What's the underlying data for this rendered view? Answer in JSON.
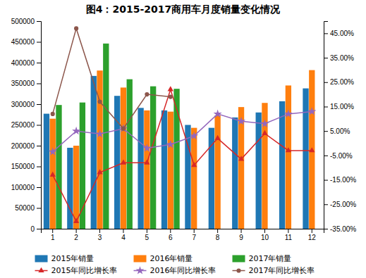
{
  "chart_data": {
    "type": "bar",
    "title": "图4：2015-2017商用车月度销量变化情况",
    "categories": [
      "1",
      "2",
      "3",
      "4",
      "5",
      "6",
      "7",
      "8",
      "9",
      "10",
      "11",
      "12"
    ],
    "ylim": [
      0,
      500000
    ],
    "yticks": [
      0,
      50000,
      100000,
      150000,
      200000,
      250000,
      300000,
      350000,
      400000,
      450000,
      500000
    ],
    "y2lim": [
      -0.35,
      0.5
    ],
    "y2ticks": [
      {
        "value": -0.35,
        "label": "-35.00%"
      },
      {
        "value": -0.25,
        "label": "-25.00%"
      },
      {
        "value": -0.15,
        "label": "-15.00%"
      },
      {
        "value": -0.05,
        "label": "-5.00%"
      },
      {
        "value": 0.05,
        "label": "5.00%"
      },
      {
        "value": 0.15,
        "label": "15.00%"
      },
      {
        "value": 0.25,
        "label": "25.00%"
      },
      {
        "value": 0.35,
        "label": "35.00%"
      },
      {
        "value": 0.45,
        "label": "45.00%"
      }
    ],
    "grid": false,
    "legend": "bottom",
    "series": [
      {
        "name": "2015年销量",
        "type": "bar",
        "values": [
          277000,
          195000,
          368000,
          320000,
          291000,
          285000,
          250000,
          243000,
          268000,
          280000,
          307000,
          338000
        ]
      },
      {
        "name": "2016年销量",
        "type": "bar",
        "values": [
          265000,
          200000,
          381000,
          340000,
          285000,
          282000,
          243000,
          273000,
          293000,
          303000,
          345000,
          382000
        ]
      },
      {
        "name": "2017年销量",
        "type": "bar",
        "values": [
          298000,
          304000,
          446000,
          360000,
          343000,
          337000,
          null,
          null,
          null,
          null,
          null,
          null
        ]
      },
      {
        "name": "2015年同比增长率",
        "type": "line",
        "axis": "y2",
        "marker": "triangle",
        "line_style": "solid",
        "values": [
          -0.13,
          -0.32,
          -0.12,
          -0.08,
          -0.08,
          0.22,
          -0.09,
          0.02,
          -0.065,
          0.04,
          -0.03,
          -0.03
        ]
      },
      {
        "name": "2016年同比增长率",
        "type": "line",
        "axis": "y2",
        "marker": "star",
        "line_style": "solid",
        "values": [
          -0.035,
          0.05,
          0.038,
          0.06,
          -0.02,
          -0.005,
          0.03,
          0.12,
          0.09,
          0.08,
          0.12,
          0.13
        ]
      },
      {
        "name": "2017年同比增长率",
        "type": "line",
        "axis": "y2",
        "marker": "circle",
        "line_style": "solid",
        "values": [
          0.12,
          0.47,
          0.17,
          0.06,
          0.2,
          0.19,
          null,
          null,
          null,
          null,
          null,
          null
        ]
      }
    ]
  }
}
